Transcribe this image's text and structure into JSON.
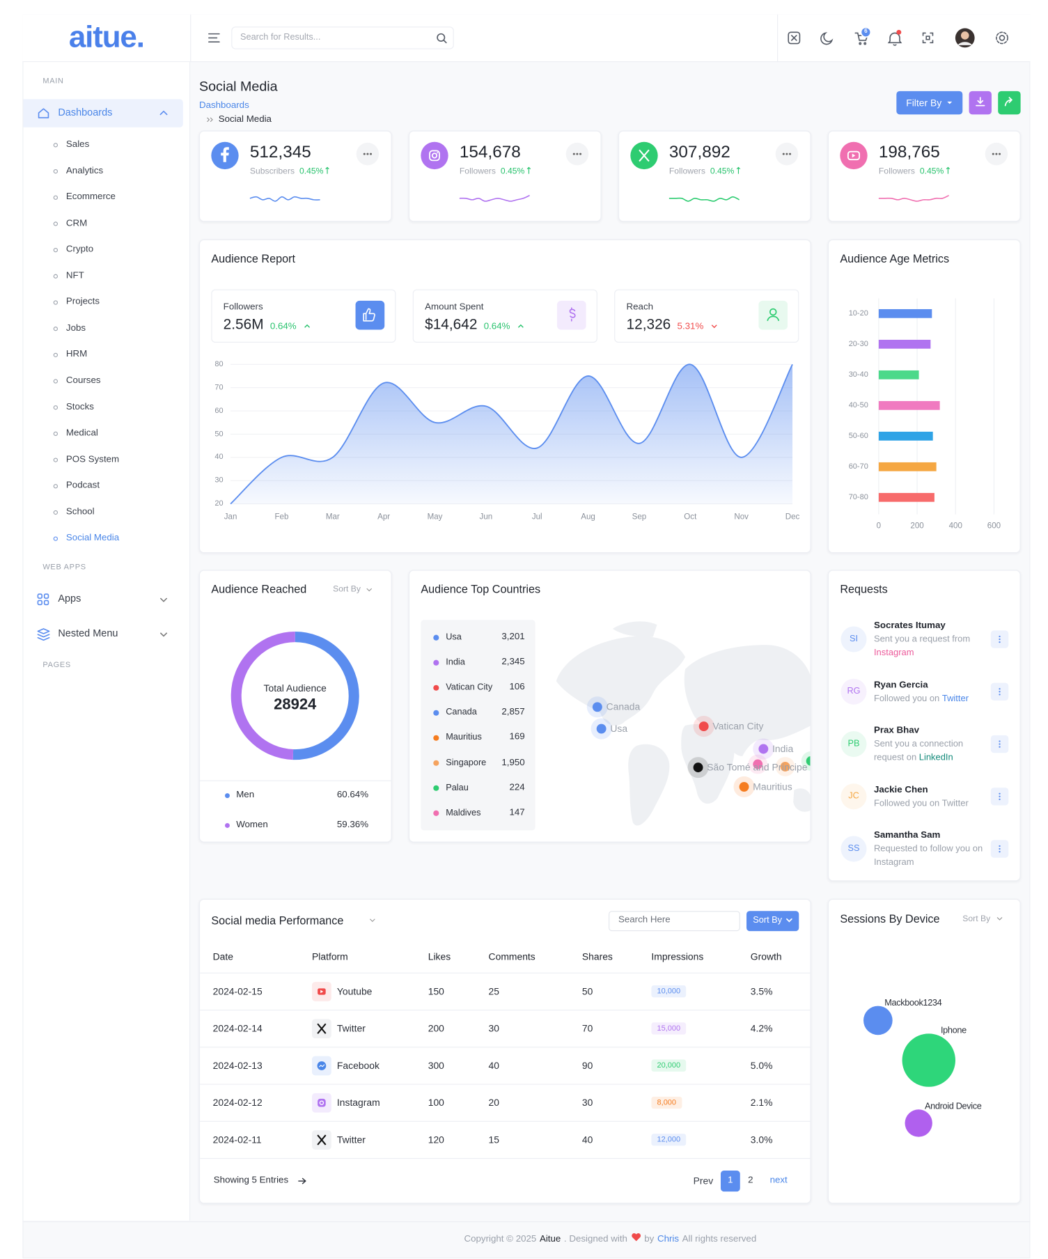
{
  "header": {
    "logo": "aitue.",
    "search_placeholder": "Search for Results...",
    "cart_count": "6"
  },
  "sidebar": {
    "main_label": "MAIN",
    "dashboards": "Dashboards",
    "items": [
      "Sales",
      "Analytics",
      "Ecommerce",
      "CRM",
      "Crypto",
      "NFT",
      "Projects",
      "Jobs",
      "HRM",
      "Courses",
      "Stocks",
      "Medical",
      "POS System",
      "Podcast",
      "School",
      "Social Media"
    ],
    "web_apps_label": "WEB APPS",
    "apps": "Apps",
    "nested_menu": "Nested Menu",
    "pages_label": "PAGES"
  },
  "page": {
    "title": "Social Media",
    "breadcrumb": [
      "Dashboards",
      "Social Media"
    ],
    "filter_button": "Filter By"
  },
  "stats": [
    {
      "value": "512,345",
      "label": "Subscribers",
      "change": "0.45%",
      "color": "#5b8def",
      "sparkline": {
        "values": [
          5,
          6,
          4,
          5,
          3,
          6,
          4,
          6,
          5,
          5,
          4,
          4
        ],
        "ylim": [
          0,
          10
        ]
      }
    },
    {
      "value": "154,678",
      "label": "Followers",
      "change": "0.45%",
      "color": "#b073f0",
      "sparkline": {
        "values": [
          5,
          5,
          4,
          5,
          3,
          4,
          5,
          4,
          3,
          4,
          5,
          7
        ],
        "ylim": [
          0,
          10
        ]
      }
    },
    {
      "value": "307,892",
      "label": "Followers",
      "change": "0.45%",
      "color": "#2ecc71",
      "sparkline": {
        "values": [
          5,
          5,
          5,
          3,
          5,
          4,
          4,
          3,
          5,
          4,
          6,
          4
        ],
        "ylim": [
          0,
          10
        ]
      }
    },
    {
      "value": "198,765",
      "label": "Followers",
      "change": "0.45%",
      "color": "#f06fb0",
      "sparkline": {
        "values": [
          5,
          5,
          5,
          4,
          5,
          4,
          3,
          4,
          4,
          5,
          5,
          7
        ],
        "ylim": [
          0,
          10
        ]
      }
    }
  ],
  "audience_report": {
    "title": "Audience Report",
    "kpis": [
      {
        "label": "Followers",
        "value": "2.56M",
        "change": "0.64%",
        "trend": "up"
      },
      {
        "label": "Amount Spent",
        "value": "$14,642",
        "change": "0.64%",
        "trend": "up"
      },
      {
        "label": "Reach",
        "value": "12,326",
        "change": "5.31%",
        "trend": "down"
      }
    ],
    "chart": {
      "type": "area",
      "categories": [
        "Jan",
        "Feb",
        "Mar",
        "Apr",
        "May",
        "Jun",
        "Jul",
        "Aug",
        "Sep",
        "Oct",
        "Nov",
        "Dec"
      ],
      "values": [
        20,
        40,
        40,
        72,
        55,
        62,
        44,
        75,
        46,
        80,
        40,
        80
      ],
      "color": "#5b8def",
      "ylim": [
        20,
        80
      ],
      "yticks": [
        20,
        30,
        40,
        50,
        60,
        70,
        80
      ],
      "grid": true
    }
  },
  "age_metrics": {
    "title": "Audience Age Metrics",
    "chart": {
      "type": "hbar",
      "categories": [
        "10-20",
        "20-30",
        "30-40",
        "40-50",
        "50-60",
        "60-70",
        "70-80"
      ],
      "values": [
        277,
        270,
        209,
        318,
        282,
        300,
        290
      ],
      "colors": [
        "#5b8def",
        "#b073f0",
        "#4cd98a",
        "#f07ac0",
        "#2fa3e6",
        "#f5a742",
        "#f76b6b"
      ],
      "xlim": [
        0,
        600
      ],
      "xticks": [
        0,
        200,
        400,
        600
      ],
      "grid": true
    }
  },
  "audience_reached": {
    "title": "Audience Reached",
    "sort_label": "Sort By",
    "center_label": "Total Audience",
    "total": "28924",
    "chart": {
      "type": "donut",
      "categories": [
        "Men",
        "Women"
      ],
      "values": [
        60.64,
        59.36
      ],
      "value_labels": [
        "60.64%",
        "59.36%"
      ],
      "colors": [
        "#5b8def",
        "#b073f0"
      ]
    }
  },
  "top_countries": {
    "title": "Audience Top Countries",
    "countries": [
      {
        "name": "Usa",
        "value": "3,201",
        "color": "#5b8def"
      },
      {
        "name": "India",
        "value": "2,345",
        "color": "#b073f0"
      },
      {
        "name": "Vatican City",
        "value": "106",
        "color": "#f04b4b"
      },
      {
        "name": "Canada",
        "value": "2,857",
        "color": "#5b8def"
      },
      {
        "name": "Mauritius",
        "value": "169",
        "color": "#f57c1f"
      },
      {
        "name": "Singapore",
        "value": "1,950",
        "color": "#f5a35f"
      },
      {
        "name": "Palau",
        "value": "224",
        "color": "#2ecc71"
      },
      {
        "name": "Maldives",
        "value": "147",
        "color": "#f06fb0"
      }
    ],
    "map_labels": [
      {
        "name": "Canada",
        "color": "#5b8def"
      },
      {
        "name": "Usa",
        "color": "#5b8def"
      },
      {
        "name": "Vatican City",
        "color": "#f04b4b"
      },
      {
        "name": "India",
        "color": "#b073f0"
      },
      {
        "name": "São Tomé and Príncipe",
        "color": "#111111"
      },
      {
        "name": "Mauritius",
        "color": "#f57c1f"
      }
    ]
  },
  "requests": {
    "title": "Requests",
    "items": [
      {
        "initials": "SI",
        "name": "Socrates Itumay",
        "text": "Sent you a request from",
        "link": "Instagram",
        "link_color": "#ec5b9b",
        "color": "#5b8def"
      },
      {
        "initials": "RG",
        "name": "Ryan Gercia",
        "text": "Followed you on",
        "link": "Twitter",
        "link_color": "#4a86e8",
        "color": "#b073f0"
      },
      {
        "initials": "PB",
        "name": "Prax Bhav",
        "text": "Sent you a connection request on",
        "link": "LinkedIn",
        "link_color": "#138a7a",
        "color": "#2ecc71"
      },
      {
        "initials": "JC",
        "name": "Jackie Chen",
        "text": "Followed you on Twitter",
        "color": "#f5a742"
      },
      {
        "initials": "SS",
        "name": "Samantha Sam",
        "text": "Requested to follow you on Instagram",
        "color": "#5b8def"
      }
    ]
  },
  "performance": {
    "title": "Social media Performance",
    "search_placeholder": "Search Here",
    "sort_label": "Sort By",
    "columns": [
      "Date",
      "Platform",
      "Likes",
      "Comments",
      "Shares",
      "Impressions",
      "Growth"
    ],
    "rows": [
      {
        "date": "2024-02-15",
        "platform": "Youtube",
        "likes": "150",
        "comments": "25",
        "shares": "50",
        "impressions": "10,000",
        "growth": "3.5%",
        "badge_color": "#5b8def"
      },
      {
        "date": "2024-02-14",
        "platform": "Twitter",
        "likes": "200",
        "comments": "30",
        "shares": "70",
        "impressions": "15,000",
        "growth": "4.2%",
        "badge_color": "#b073f0"
      },
      {
        "date": "2024-02-13",
        "platform": "Facebook",
        "likes": "300",
        "comments": "40",
        "shares": "90",
        "impressions": "20,000",
        "growth": "5.0%",
        "badge_color": "#2ecc71"
      },
      {
        "date": "2024-02-12",
        "platform": "Instagram",
        "likes": "100",
        "comments": "20",
        "shares": "30",
        "impressions": "8,000",
        "growth": "2.1%",
        "badge_color": "#f57c1f"
      },
      {
        "date": "2024-02-11",
        "platform": "Twitter",
        "likes": "120",
        "comments": "15",
        "shares": "40",
        "impressions": "12,000",
        "growth": "3.0%",
        "badge_color": "#5b8def"
      }
    ],
    "showing": "Showing 5 Entries",
    "prev": "Prev",
    "pages": [
      "1",
      "2"
    ],
    "next": "next"
  },
  "sessions": {
    "title": "Sessions By Device",
    "sort_label": "Sort By",
    "chart": {
      "type": "bubble",
      "xlim": [
        0,
        100
      ],
      "ylim": [
        0,
        100
      ],
      "series": [
        {
          "name": "Mackbook1234",
          "color": "#5b8def",
          "x": [
            21
          ],
          "values": [
            67
          ],
          "sizes": [
            18
          ]
        },
        {
          "name": "Iphone",
          "color": "#2ed67a",
          "x": [
            51
          ],
          "values": [
            48
          ],
          "sizes": [
            33
          ]
        },
        {
          "name": "Android Device",
          "color": "#b060ee",
          "x": [
            45
          ],
          "values": [
            18
          ],
          "sizes": [
            17
          ]
        }
      ]
    }
  },
  "footer": {
    "copyright": "Copyright © 2025",
    "brand": "Aitue",
    "designed": ". Designed with",
    "by": "by",
    "author": "Chris",
    "rights": "All rights reserved"
  }
}
